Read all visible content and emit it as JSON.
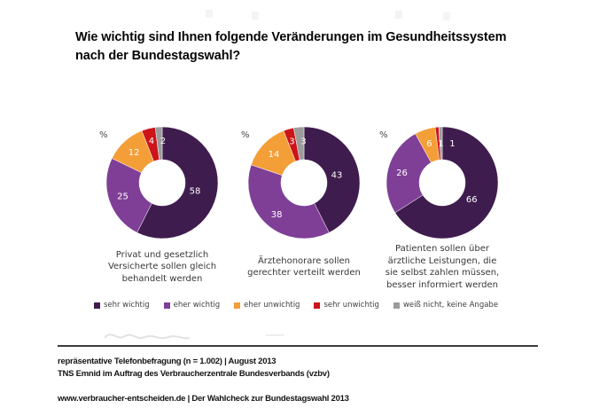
{
  "title": "Wie wichtig sind Ihnen folgende Veränderungen im Gesundheitssystem\nnach der Bundestagswahl?",
  "chart_data": {
    "type": "pie",
    "subtype": "donut",
    "unit": "%",
    "grid": false,
    "legend_position": "bottom",
    "legend": [
      "sehr wichtig",
      "eher wichtig",
      "eher unwichtig",
      "sehr unwichtig",
      "weiß nicht, keine Angabe"
    ],
    "colors": [
      "#3f1c4e",
      "#7f3f97",
      "#f49e38",
      "#cc1419",
      "#9c9c9c"
    ],
    "donuts": [
      {
        "caption": "Privat und gesetzlich\nVersicherte sollen gleich\nbehandelt werden",
        "values": [
          58,
          25,
          12,
          4,
          2
        ]
      },
      {
        "caption": "Ärztehonorare sollen\ngerechter verteilt werden",
        "values": [
          43,
          38,
          14,
          3,
          3
        ]
      },
      {
        "caption": "Patienten sollen über\närztliche Leistungen, die\nsie selbst zahlen müssen,\nbesser informiert werden",
        "values": [
          66,
          26,
          6,
          1,
          1
        ]
      }
    ]
  },
  "footer": {
    "source_line1": "repräsentative Telefonbefragung (n = 1.002) | August 2013",
    "source_line2": "TNS Emnid im Auftrag des Verbraucherzentrale Bundesverbands (vzbv)",
    "campaign_line": "www.verbraucher-entscheiden.de | Der Wahlcheck zur Bundestagswahl 2013"
  }
}
